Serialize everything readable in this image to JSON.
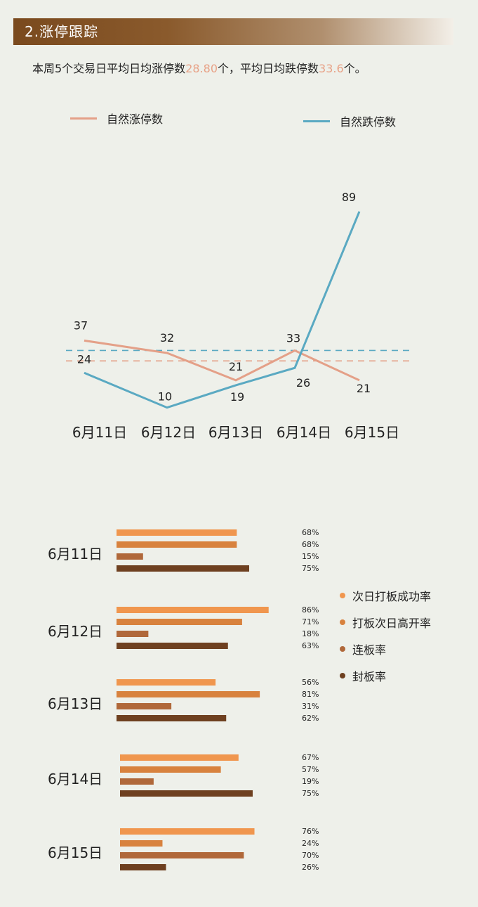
{
  "header": {
    "title": "2.涨停跟踪"
  },
  "summary": {
    "prefix": "本周5个交易日平均日均涨停数",
    "limit_up_avg": "28.80",
    "middle": "个，平均日均跌停数",
    "limit_down_avg": "33.6",
    "suffix": "个。"
  },
  "chart_data": [
    {
      "type": "line",
      "categories": [
        "6月11日",
        "6月12日",
        "6月13日",
        "6月14日",
        "6月15日"
      ],
      "series": [
        {
          "name": "自然涨停数",
          "color": "#e4a088",
          "values": [
            37,
            32,
            21,
            33,
            21
          ]
        },
        {
          "name": "自然跌停数",
          "color": "#5aa9c2",
          "values": [
            24,
            10,
            19,
            26,
            89
          ]
        }
      ],
      "grid": false
    },
    {
      "type": "bar",
      "orientation": "horizontal",
      "categories": [
        "6月11日",
        "6月12日",
        "6月13日",
        "6月14日",
        "6月15日"
      ],
      "series": [
        {
          "name": "次日打板成功率",
          "color": "#f0964e",
          "values": [
            68,
            86,
            56,
            67,
            76
          ]
        },
        {
          "name": "打板次日高开率",
          "color": "#d8823e",
          "values": [
            68,
            71,
            81,
            57,
            24
          ]
        },
        {
          "name": "连板率",
          "color": "#b0683a",
          "values": [
            15,
            18,
            31,
            19,
            70
          ]
        },
        {
          "name": "封板率",
          "color": "#6e4020",
          "values": [
            75,
            63,
            62,
            75,
            26
          ]
        }
      ],
      "value_suffix": "%",
      "legend_position": "right"
    }
  ]
}
